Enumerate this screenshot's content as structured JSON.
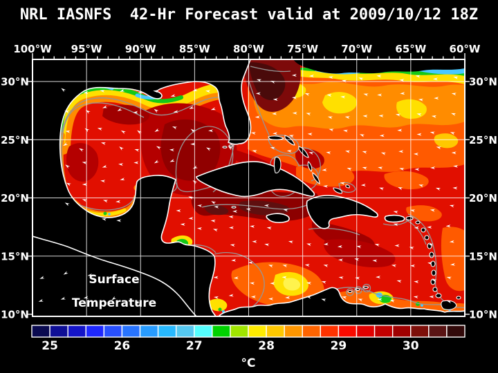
{
  "title": "NRL IASNFS  42-Hr Forecast valid at 2009/10/12 18Z",
  "map": {
    "annotation": {
      "line1": "Surface",
      "line2": "Temperature"
    },
    "lon_labels": [
      "100°W",
      "95°W",
      "90°W",
      "85°W",
      "80°W",
      "75°W",
      "70°W",
      "65°W",
      "60°W"
    ],
    "lat_labels": [
      "30°N",
      "25°N",
      "20°N",
      "15°N",
      "10°N"
    ]
  },
  "colorbar": {
    "unit": "°C",
    "tick_labels": [
      "25",
      "26",
      "27",
      "28",
      "29",
      "30"
    ],
    "cell_colors": [
      "#0a0a50",
      "#0f0f96",
      "#1414c8",
      "#1e28ff",
      "#2850ff",
      "#2874ff",
      "#289cff",
      "#28b9ff",
      "#55c8f0",
      "#55ffff",
      "#00d200",
      "#a0e600",
      "#ffeb00",
      "#ffc800",
      "#ff9600",
      "#ff6400",
      "#ff3200",
      "#fa0a00",
      "#e10000",
      "#c30000",
      "#a00000",
      "#7d0f0a",
      "#5a1414",
      "#320a0a"
    ]
  },
  "chart_data": {
    "type": "heatmap",
    "variable": "Surface Temperature",
    "units": "°C",
    "model": "NRL IASNFS",
    "forecast": "42-Hr Forecast",
    "valid_time": "2009/10/12 18Z",
    "lon_ticks": [
      "100°W",
      "95°W",
      "90°W",
      "85°W",
      "80°W",
      "75°W",
      "70°W",
      "65°W",
      "60°W"
    ],
    "lat_ticks": [
      "30°N",
      "25°N",
      "20°N",
      "15°N",
      "10°N"
    ],
    "colorbar_tick_values": [
      25,
      26,
      27,
      28,
      29,
      30
    ],
    "colorbar_step_degC": 0.25,
    "colorbar_range_degC": [
      24.75,
      30.75
    ],
    "legend_position": "bottom"
  }
}
